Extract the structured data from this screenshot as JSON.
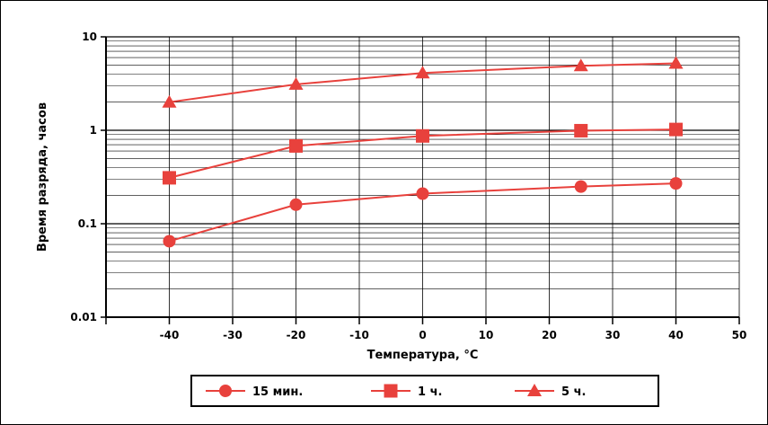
{
  "chart_data": {
    "type": "line",
    "xlabel": "Температура, °C",
    "ylabel": "Время разряда, часов",
    "y_scale": "log",
    "xlim": [
      -50,
      50
    ],
    "ylim": [
      0.01,
      10
    ],
    "x_ticks": [
      "-40",
      "-30",
      "-20",
      "-10",
      "0",
      "10",
      "20",
      "30",
      "40",
      "50"
    ],
    "y_ticks": [
      "0.01",
      "0.1",
      "1",
      "10"
    ],
    "grid": true,
    "line_color": "#e8413c",
    "series": [
      {
        "name": "15 мин.",
        "marker": "circle",
        "x": [
          -40,
          -20,
          0,
          25,
          40
        ],
        "y": [
          0.065,
          0.16,
          0.21,
          0.25,
          0.27
        ]
      },
      {
        "name": "1 ч.",
        "marker": "square",
        "x": [
          -40,
          -20,
          0,
          25,
          40
        ],
        "y": [
          0.31,
          0.68,
          0.87,
          0.99,
          1.02
        ]
      },
      {
        "name": "5 ч.",
        "marker": "triangle",
        "x": [
          -40,
          -20,
          0,
          25,
          40
        ],
        "y": [
          2.0,
          3.1,
          4.1,
          4.9,
          5.2
        ]
      }
    ]
  }
}
